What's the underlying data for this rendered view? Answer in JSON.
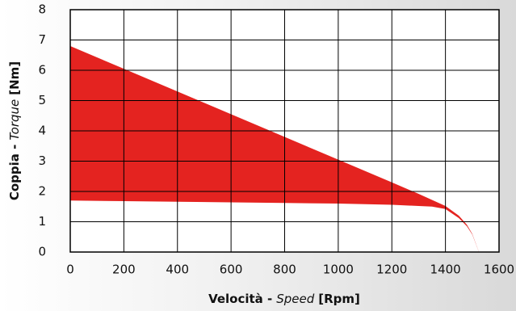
{
  "chart_data": {
    "type": "area",
    "y_label_parts": [
      "Coppia -",
      "Torque",
      "[Nm]"
    ],
    "x_label_parts": [
      "Velocità -",
      "Speed",
      "[Rpm]"
    ],
    "x": [
      0,
      200,
      400,
      600,
      800,
      1000,
      1200,
      1300,
      1350,
      1400,
      1450,
      1480,
      1500,
      1525
    ],
    "series": [
      {
        "color": "#e42320",
        "values": [
          6.8,
          6.05,
          5.3,
          4.55,
          3.8,
          3.05,
          2.3,
          1.92,
          1.72,
          1.52,
          1.2,
          0.9,
          0.6,
          0
        ]
      },
      {
        "color": "#ffffff",
        "values": [
          1.7,
          1.68,
          1.66,
          1.64,
          1.62,
          1.6,
          1.56,
          1.52,
          1.5,
          1.42,
          1.12,
          0.85,
          0.58,
          0
        ]
      }
    ],
    "xlim": [
      0,
      1600
    ],
    "xticks": [
      0,
      200,
      400,
      600,
      800,
      1000,
      1200,
      1400,
      1600
    ],
    "ylim": [
      0,
      8
    ],
    "yticks": [
      0,
      1,
      2,
      3,
      4,
      5,
      6,
      7,
      8
    ],
    "grid": true
  }
}
